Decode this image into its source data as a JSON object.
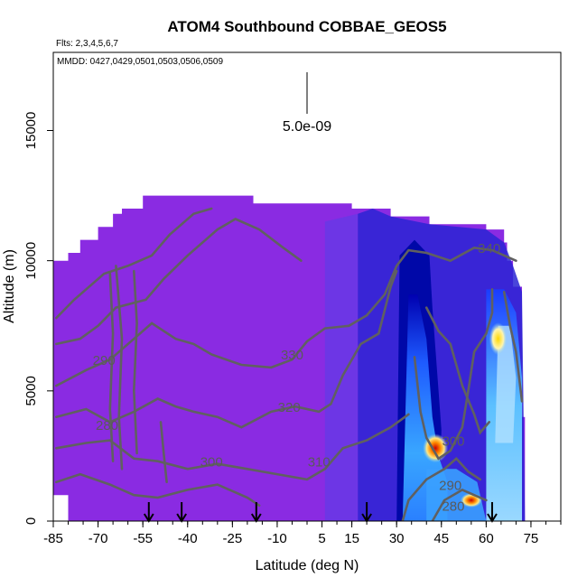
{
  "chart_data": {
    "type": "heatmap",
    "title": "ATOM4 Southbound COBBAE_GEOS5",
    "subtitle_flights": "Flts: 2,3,4,5,6,7",
    "subtitle_dates": "MMDD: 0427,0429,0501,0503,0506,0509",
    "xlabel": "Latitude (deg N)",
    "ylabel": "Altitude (m)",
    "xlim": [
      -85,
      85
    ],
    "ylim": [
      0,
      18000
    ],
    "x_ticks": [
      -85,
      -70,
      -55,
      -40,
      -25,
      -10,
      5,
      15,
      30,
      45,
      60,
      75
    ],
    "y_ticks": [
      0,
      5000,
      10000,
      15000
    ],
    "scale_label": "5.0e-09",
    "colors": {
      "background": "#8a2be2",
      "low": "#0000c8",
      "mid": "#1e90ff",
      "high_light": "#b0e0ff",
      "hot": "#ffd700",
      "peak": "#cc0000",
      "contour": "#606060"
    },
    "contour_levels": [
      {
        "label": "290",
        "lat": -68,
        "alt": 6000
      },
      {
        "label": "280",
        "lat": -67,
        "alt": 3500
      },
      {
        "label": "300",
        "lat": -32,
        "alt": 2100
      },
      {
        "label": "310",
        "lat": 4,
        "alt": 2100
      },
      {
        "label": "320",
        "lat": -6,
        "alt": 4200
      },
      {
        "label": "330",
        "lat": -5,
        "alt": 6200
      },
      {
        "label": "340",
        "lat": 61,
        "alt": 10300
      },
      {
        "label": "300",
        "lat": 49,
        "alt": 2900
      },
      {
        "label": "290",
        "lat": 48,
        "alt": 1200
      },
      {
        "label": "280",
        "lat": 49,
        "alt": 400
      }
    ],
    "flight_arrows_lat": [
      -53,
      -42,
      -17,
      20,
      62
    ]
  }
}
